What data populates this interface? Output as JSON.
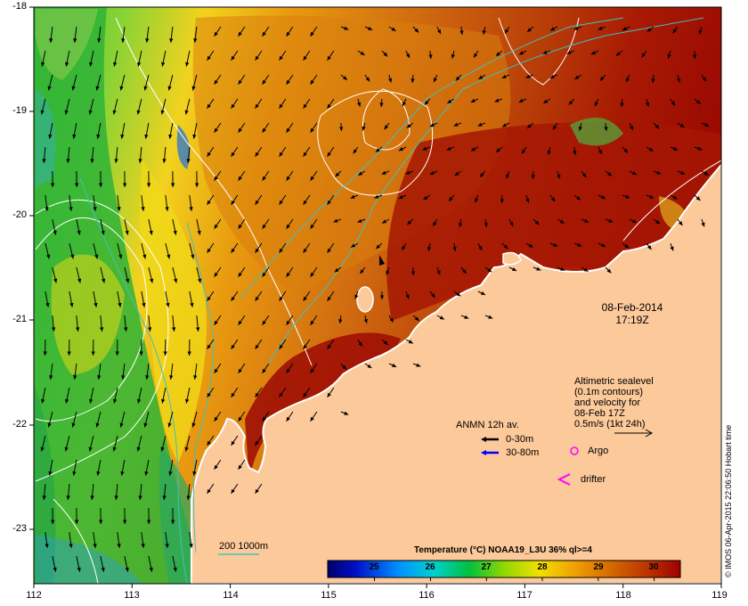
{
  "map": {
    "date": "08-Feb-2014",
    "time": "17:19Z",
    "credit": "© IMOS 06-Apr-2015 22:06:50 Hobart time",
    "x_ticks": [
      "112",
      "113",
      "114",
      "115",
      "116",
      "117",
      "118",
      "119"
    ],
    "y_ticks": [
      "-18",
      "-19",
      "-20",
      "-21",
      "-22",
      "-23"
    ]
  },
  "legend": {
    "sealevel_lines": [
      "Altimetric sealevel",
      "(0.1m contours)",
      "and velocity for",
      "08-Feb 17Z",
      "0.5m/s (1kt 24h)"
    ],
    "anmn_title": "ANMN 12h av.",
    "anmn_shallow": "0-30m",
    "anmn_deep": "30-80m",
    "argo": "Argo",
    "drifter": "drifter",
    "bathymetry": "200  1000m"
  },
  "colorbar": {
    "title": "Temperature (°C) NOAA19_L3U 36% ql>=4",
    "ticks": [
      "25",
      "26",
      "27",
      "28",
      "29",
      "30"
    ],
    "range": [
      24.3,
      30.6
    ]
  },
  "colors": {
    "land": "#fcc99a",
    "vector": "#000000",
    "deep_vector": "#0000ff",
    "bathymetry": "#40c0c0",
    "contour": "#ffffff",
    "argo": "#ff00ff"
  }
}
